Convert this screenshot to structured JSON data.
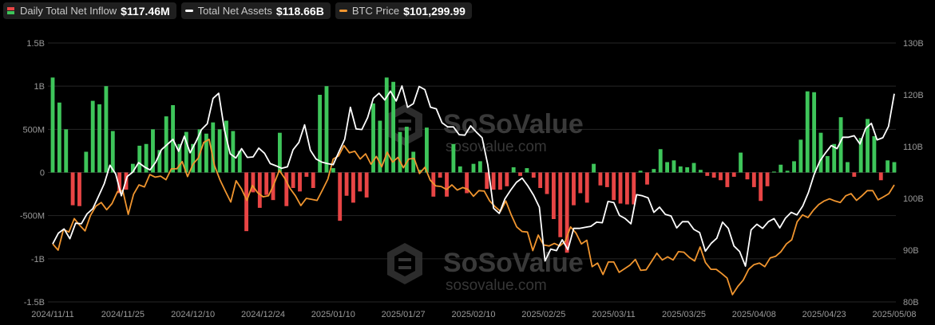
{
  "legend": {
    "inflow": {
      "label": "Daily Total Net Inflow",
      "value": "$117.46M"
    },
    "assets": {
      "label": "Total Net Assets",
      "value": "$118.66B"
    },
    "btc": {
      "label": "BTC Price",
      "value": "$101,299.99"
    }
  },
  "watermark": {
    "brand": "SoSoValue",
    "site": "sosovalue.com"
  },
  "colors": {
    "positive": "#3ec55a",
    "negative": "#e84545",
    "assets_line": "#ffffff",
    "btc_line": "#f0952f",
    "grid": "#262626"
  },
  "chart_data": {
    "type": "bar",
    "x_labels": [
      "2024/11/11",
      "2024/11/25",
      "2024/12/10",
      "2024/12/24",
      "2025/01/10",
      "2025/01/27",
      "2025/02/10",
      "2025/02/25",
      "2025/03/11",
      "2025/03/25",
      "2025/04/08",
      "2025/04/23",
      "2025/05/08"
    ],
    "yleft_ticks": [
      "1.5B",
      "1B",
      "500M",
      "0",
      "-500M",
      "-1B",
      "-1.5B"
    ],
    "yleft_range": [
      -1.5,
      1.5
    ],
    "yright_ticks": [
      "130B",
      "120B",
      "110B",
      "100B",
      "90B",
      "80B"
    ],
    "yright_range": [
      80,
      130
    ],
    "grid": "horizontal",
    "series": [
      {
        "name": "Daily Total Net Inflow",
        "type": "bar",
        "unit": "B USD",
        "values": [
          1.1,
          0.81,
          0.5,
          -0.38,
          -0.39,
          0.24,
          0.83,
          0.79,
          1.0,
          0.48,
          -0.24,
          -0.2,
          0.1,
          0.31,
          0.33,
          0.5,
          0.26,
          0.65,
          0.78,
          0.33,
          0.47,
          0.33,
          0.5,
          0.45,
          0.58,
          0.5,
          0.6,
          0.48,
          0.25,
          -0.68,
          -0.23,
          -0.41,
          -0.26,
          -0.32,
          0.46,
          -0.39,
          -0.18,
          -0.22,
          -0.05,
          -0.18,
          0.9,
          1.0,
          0.05,
          -0.56,
          -0.27,
          -0.35,
          -0.22,
          -0.29,
          0.8,
          0.6,
          1.1,
          1.05,
          0.47,
          0.53,
          0.24,
          0.03,
          0.52,
          -0.28,
          -0.06,
          -0.28,
          0.33,
          0.07,
          -0.24,
          0.1,
          0.13,
          -0.19,
          -0.2,
          -0.2,
          -0.16,
          0.06,
          -0.04,
          0.05,
          -0.06,
          -0.18,
          -0.25,
          -0.54,
          -0.75,
          -0.93,
          -0.38,
          -0.24,
          -0.35,
          0.1,
          -0.15,
          -0.17,
          -0.32,
          -0.36,
          -0.37,
          -0.37,
          0.02,
          -0.14,
          0.04,
          0.27,
          0.12,
          0.14,
          0.07,
          0.06,
          0.11,
          0.03,
          -0.04,
          -0.06,
          -0.09,
          -0.17,
          -0.05,
          0.23,
          -0.08,
          -0.17,
          -0.33,
          -0.16,
          0.01,
          0.09,
          0.02,
          0.13,
          0.38,
          0.94,
          0.93,
          0.46,
          0.19,
          0.33,
          0.64,
          0.12,
          -0.05,
          0.4,
          0.62,
          0.42,
          -0.09,
          0.14,
          0.12
        ]
      },
      {
        "name": "Total Net Assets",
        "type": "line",
        "unit": "B USD",
        "values": [
          91.2,
          93.3,
          94.1,
          92.2,
          95.2,
          95.1,
          97,
          98,
          100.4,
          102.8,
          106.4,
          104.7,
          100.5,
          104.2,
          105.1,
          106.9,
          106.1,
          105.5,
          107,
          109.4,
          110.4,
          111.4,
          109.1,
          112,
          108.8,
          110.9,
          113.3,
          114.4,
          119.3,
          120.3,
          113.2,
          108.6,
          107.8,
          109.6,
          107.9,
          108,
          109.7,
          108.7,
          106.7,
          106.3,
          105.8,
          106.1,
          109.4,
          110.8,
          114.2,
          109.3,
          107.6,
          107,
          106.7,
          106.5,
          109,
          111.4,
          117.6,
          113.4,
          113.3,
          115.6,
          119.3,
          120.3,
          119,
          120.7,
          118.8,
          121.7,
          117.6,
          118.3,
          121.6,
          121,
          117.6,
          117.3,
          114.6,
          113.8,
          113.8,
          112.3,
          112.2,
          114,
          112.8,
          111.7,
          106.5,
          98.1,
          97.1,
          99.9,
          101.6,
          103.1,
          103.9,
          102.4,
          100.6,
          98.3,
          87.9,
          90.2,
          89.9,
          92,
          90.1,
          94.2,
          94.2,
          94.4,
          94.6,
          95.4,
          95.3,
          99.4,
          99.2,
          96.7,
          96.1,
          95.1,
          100.7,
          100.5,
          100.1,
          97.3,
          98.3,
          96.9,
          96.6,
          94.3,
          95.5,
          95.5,
          94,
          93.4,
          89.8,
          91.3,
          92.3,
          95.4,
          94.2,
          90.8,
          89.7,
          86.9,
          93.9,
          95,
          94.2,
          95.5,
          96.1,
          94.3,
          96.2,
          97.3,
          96.8,
          98.5,
          101.1,
          104.6,
          107.2,
          108.8,
          110.2,
          109.6,
          111.8,
          111.8,
          112.1,
          110.5,
          113.5,
          114.5,
          111.3,
          111.7,
          113.9,
          120.2
        ]
      },
      {
        "name": "BTC Price",
        "type": "line",
        "unit": "B-axis scaled",
        "values": [
          91.2,
          90,
          94,
          93.5,
          96.1,
          94.8,
          93.7,
          96.7,
          98.5,
          99.2,
          97.8,
          99,
          101.3,
          101.5,
          96.9,
          100.8,
          102.6,
          102.2,
          104.6,
          104.1,
          104.3,
          103.6,
          105.7,
          105.7,
          107.1,
          104.2,
          106.6,
          107.8,
          110.8,
          111.4,
          106.3,
          103.6,
          101.4,
          99.3,
          103.4,
          101.8,
          99.6,
          102.5,
          101.1,
          100.3,
          100.5,
          102.7,
          105.4,
          103.9,
          101.9,
          100.5,
          98.6,
          100,
          99.8,
          99.6,
          101.6,
          103.7,
          107.6,
          108.2,
          110.2,
          108.8,
          109.1,
          107.6,
          108.6,
          106.6,
          108.1,
          106.1,
          108.9,
          107,
          107.9,
          105.9,
          107.6,
          107.7,
          104.8,
          106,
          103.5,
          102.4,
          102.3,
          101.7,
          102.6,
          101.6,
          102.1,
          101.7,
          100.4,
          101.5,
          101.4,
          99.5,
          98.4,
          97.5,
          99.5,
          96.8,
          94.5,
          93.6,
          93.5,
          89.9,
          92.9,
          91,
          90.8,
          91.3,
          90.8,
          91.7,
          94.5,
          93.3,
          91.2,
          91.9,
          86.8,
          87.5,
          85.3,
          87.7,
          87.7,
          85.7,
          86.4,
          87.1,
          88.2,
          86.1,
          86.2,
          87.8,
          89.4,
          88.1,
          88.7,
          88.1,
          89.7,
          89.6,
          88.6,
          87.9,
          90.6,
          87.6,
          86.3,
          86.3,
          85.5,
          84.6,
          81.4,
          83,
          84.2,
          86.3,
          87.2,
          87.5,
          86.8,
          88.5,
          88.8,
          89.7,
          91.2,
          92,
          95.5,
          96.8,
          96.3,
          97.7,
          98.8,
          99.5,
          99.9,
          99.5,
          99.2,
          100.5,
          100.9,
          99.6,
          100.5,
          101.5,
          101.5,
          99.7,
          100.3,
          100.9,
          102.6
        ]
      }
    ]
  }
}
